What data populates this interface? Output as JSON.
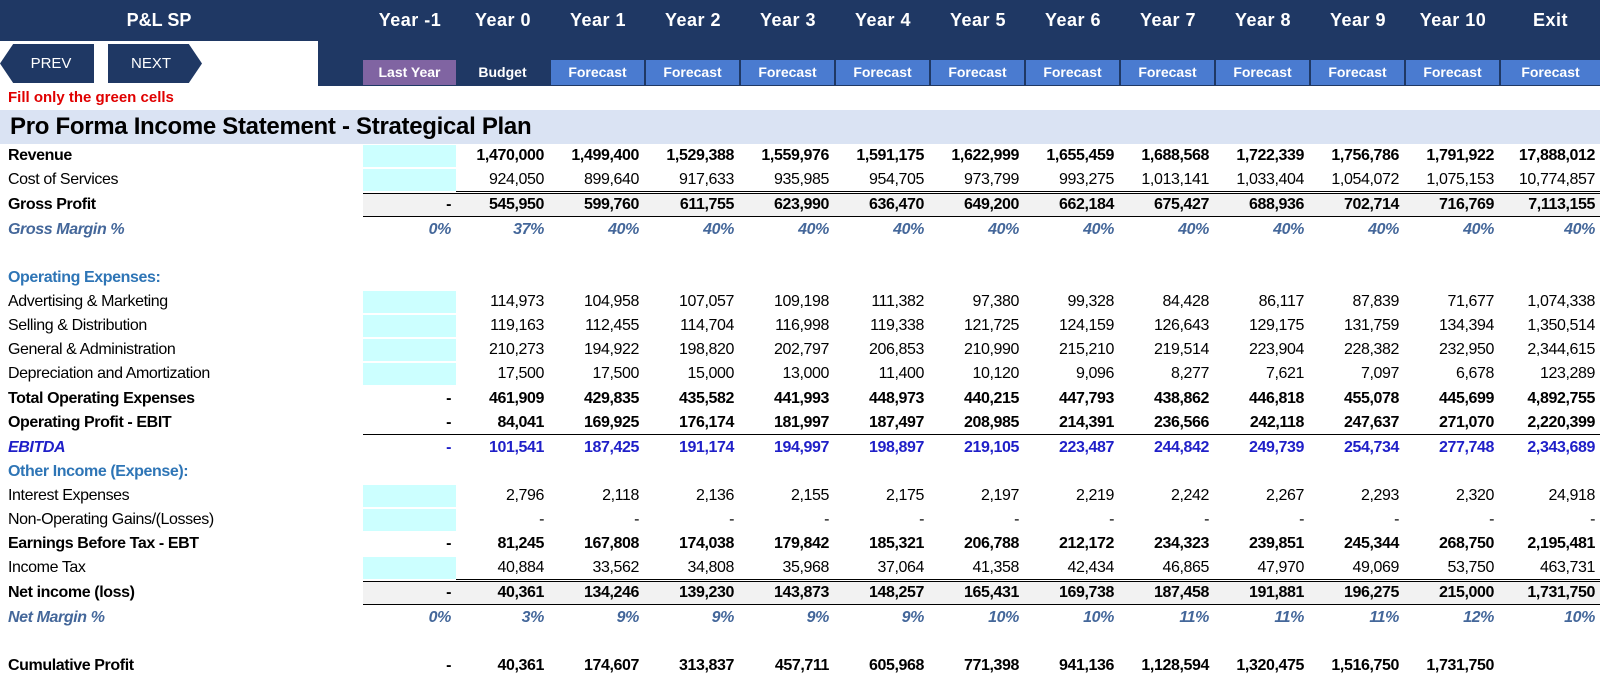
{
  "header": {
    "sheet_title": "P&L SP",
    "years": [
      "Year -1",
      "Year 0",
      "Year 1",
      "Year 2",
      "Year 3",
      "Year 4",
      "Year 5",
      "Year 6",
      "Year 7",
      "Year 8",
      "Year 9",
      "Year 10",
      "Exit"
    ],
    "subheaders": [
      "Last Year",
      "Budget",
      "Forecast",
      "Forecast",
      "Forecast",
      "Forecast",
      "Forecast",
      "Forecast",
      "Forecast",
      "Forecast",
      "Forecast",
      "Forecast",
      "Forecast"
    ]
  },
  "nav": {
    "prev_label": "PREV",
    "next_label": "NEXT"
  },
  "note": "Fill only the green cells",
  "title": "Pro Forma Income Statement - Strategical Plan",
  "colors": {
    "header_bg": "#1f3864",
    "last_year": "#8064a2",
    "forecast": "#4a7bd0",
    "input": "#ccffff",
    "title_band": "#dae3f3",
    "note": "#e00000"
  },
  "rows": [
    {
      "label": "Revenue",
      "style": "bold-label",
      "input": true,
      "values": [
        "",
        "1,470,000",
        "1,499,400",
        "1,529,388",
        "1,559,976",
        "1,591,175",
        "1,622,999",
        "1,655,459",
        "1,688,568",
        "1,722,339",
        "1,756,786",
        "1,791,922",
        "17,888,012"
      ]
    },
    {
      "label": "Cost of Services",
      "style": "normal",
      "input": true,
      "values": [
        "",
        "924,050",
        "899,640",
        "917,633",
        "935,985",
        "954,705",
        "973,799",
        "993,275",
        "1,013,141",
        "1,033,404",
        "1,054,072",
        "1,075,153",
        "10,774,857"
      ]
    },
    {
      "label": "Gross Profit",
      "style": "total",
      "input": false,
      "values": [
        "-",
        "545,950",
        "599,760",
        "611,755",
        "623,990",
        "636,470",
        "649,200",
        "662,184",
        "675,427",
        "688,936",
        "702,714",
        "716,769",
        "7,113,155"
      ]
    },
    {
      "label": "Gross Margin %",
      "style": "pct",
      "input": false,
      "values": [
        "0%",
        "37%",
        "40%",
        "40%",
        "40%",
        "40%",
        "40%",
        "40%",
        "40%",
        "40%",
        "40%",
        "40%",
        "40%"
      ]
    },
    {
      "label": "",
      "style": "blank",
      "input": false,
      "values": []
    },
    {
      "label": "Operating Expenses:",
      "style": "section",
      "input": false,
      "values": []
    },
    {
      "label": "Advertising & Marketing",
      "style": "normal",
      "input": true,
      "values": [
        "",
        "114,973",
        "104,958",
        "107,057",
        "109,198",
        "111,382",
        "97,380",
        "99,328",
        "84,428",
        "86,117",
        "87,839",
        "71,677",
        "1,074,338"
      ]
    },
    {
      "label": "Selling & Distribution",
      "style": "normal",
      "input": true,
      "values": [
        "",
        "119,163",
        "112,455",
        "114,704",
        "116,998",
        "119,338",
        "121,725",
        "124,159",
        "126,643",
        "129,175",
        "131,759",
        "134,394",
        "1,350,514"
      ]
    },
    {
      "label": "General & Administration",
      "style": "normal",
      "input": true,
      "values": [
        "",
        "210,273",
        "194,922",
        "198,820",
        "202,797",
        "206,853",
        "210,990",
        "215,210",
        "219,514",
        "223,904",
        "228,382",
        "232,950",
        "2,344,615"
      ]
    },
    {
      "label": "Depreciation and Amortization",
      "style": "normal",
      "input": true,
      "values": [
        "",
        "17,500",
        "17,500",
        "15,000",
        "13,000",
        "11,400",
        "10,120",
        "9,096",
        "8,277",
        "7,621",
        "7,097",
        "6,678",
        "123,289"
      ]
    },
    {
      "label": "Total Operating Expenses",
      "style": "bold",
      "input": false,
      "values": [
        "-",
        "461,909",
        "429,835",
        "435,582",
        "441,993",
        "448,973",
        "440,215",
        "447,793",
        "438,862",
        "446,818",
        "455,078",
        "445,699",
        "4,892,755"
      ]
    },
    {
      "label": "Operating Profit - EBIT",
      "style": "bold",
      "input": false,
      "values": [
        "-",
        "84,041",
        "169,925",
        "176,174",
        "181,997",
        "187,497",
        "208,985",
        "214,391",
        "236,566",
        "242,118",
        "247,637",
        "271,070",
        "2,220,399"
      ]
    },
    {
      "label": "EBITDA",
      "style": "ebitda",
      "input": false,
      "values": [
        "-",
        "101,541",
        "187,425",
        "191,174",
        "194,997",
        "198,897",
        "219,105",
        "223,487",
        "244,842",
        "249,739",
        "254,734",
        "277,748",
        "2,343,689"
      ]
    },
    {
      "label": "Other Income (Expense):",
      "style": "section",
      "input": false,
      "values": []
    },
    {
      "label": "Interest Expenses",
      "style": "normal",
      "input": true,
      "values": [
        "",
        "2,796",
        "2,118",
        "2,136",
        "2,155",
        "2,175",
        "2,197",
        "2,219",
        "2,242",
        "2,267",
        "2,293",
        "2,320",
        "24,918"
      ]
    },
    {
      "label": "Non-Operating Gains/(Losses)",
      "style": "normal",
      "input": true,
      "values": [
        "",
        "-",
        "-",
        "-",
        "-",
        "-",
        "-",
        "-",
        "-",
        "-",
        "-",
        "-",
        "-"
      ]
    },
    {
      "label": "Earnings Before Tax - EBT",
      "style": "bold",
      "input": false,
      "values": [
        "-",
        "81,245",
        "167,808",
        "174,038",
        "179,842",
        "185,321",
        "206,788",
        "212,172",
        "234,323",
        "239,851",
        "245,344",
        "268,750",
        "2,195,481"
      ]
    },
    {
      "label": "Income Tax",
      "style": "normal",
      "input": true,
      "values": [
        "",
        "40,884",
        "33,562",
        "34,808",
        "35,968",
        "37,064",
        "41,358",
        "42,434",
        "46,865",
        "47,970",
        "49,069",
        "53,750",
        "463,731"
      ]
    },
    {
      "label": "Net income (loss)",
      "style": "total",
      "input": false,
      "values": [
        "-",
        "40,361",
        "134,246",
        "139,230",
        "143,873",
        "148,257",
        "165,431",
        "169,738",
        "187,458",
        "191,881",
        "196,275",
        "215,000",
        "1,731,750"
      ]
    },
    {
      "label": "Net Margin %",
      "style": "pct",
      "input": false,
      "values": [
        "0%",
        "3%",
        "9%",
        "9%",
        "9%",
        "9%",
        "10%",
        "10%",
        "11%",
        "11%",
        "11%",
        "12%",
        "10%"
      ]
    },
    {
      "label": "",
      "style": "blank",
      "input": false,
      "values": []
    },
    {
      "label": "Cumulative Profit",
      "style": "bold",
      "input": false,
      "values": [
        "-",
        "40,361",
        "174,607",
        "313,837",
        "457,711",
        "605,968",
        "771,398",
        "941,136",
        "1,128,594",
        "1,320,475",
        "1,516,750",
        "1,731,750",
        ""
      ]
    }
  ]
}
